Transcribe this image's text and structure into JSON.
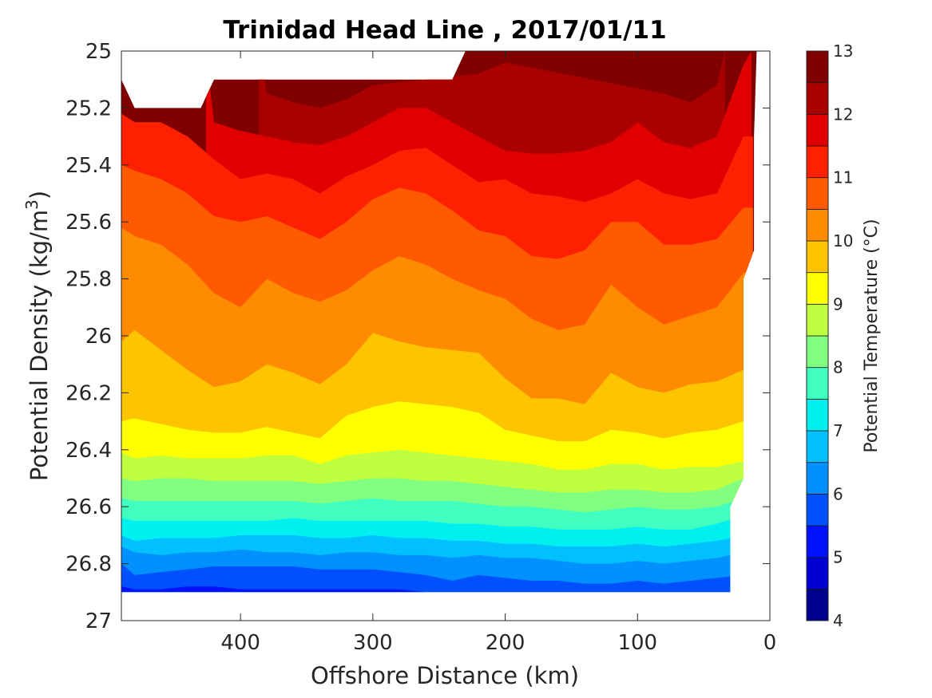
{
  "chart_data": {
    "type": "contour",
    "title": "Trinidad Head Line , 2017/01/11",
    "xlabel": "Offshore Distance (km)",
    "ylabel_prefix": "Potential Density (kg/m",
    "ylabel_sup": "3",
    "ylabel_suffix": ")",
    "xlim": [
      490,
      0
    ],
    "ylim": [
      25,
      27
    ],
    "x_reversed": true,
    "y_reversed": true,
    "x_ticks": [
      400,
      300,
      200,
      100,
      0
    ],
    "y_ticks": [
      25,
      25.2,
      25.4,
      25.6,
      25.8,
      26,
      26.2,
      26.4,
      26.6,
      26.8,
      27
    ],
    "y_tick_labels": [
      "25",
      "25.2",
      "25.4",
      "25.6",
      "25.8",
      "26",
      "26.2",
      "26.4",
      "26.6",
      "26.8",
      "27"
    ],
    "colorbar": {
      "label": "Potential Temperature (°C)",
      "range": [
        4,
        13
      ],
      "ticks": [
        4,
        5,
        6,
        7,
        8,
        9,
        10,
        11,
        12,
        13
      ],
      "levels": [
        4,
        4.5,
        5,
        5.5,
        6,
        6.5,
        7,
        7.5,
        8,
        8.5,
        9,
        9.5,
        10,
        10.5,
        11,
        11.5,
        12,
        12.5,
        13
      ],
      "colors": [
        "#00008f",
        "#0000d4",
        "#0011ff",
        "#0050ff",
        "#0090ff",
        "#00c0ff",
        "#00f0f0",
        "#40ffc0",
        "#80ff80",
        "#c0ff40",
        "#ffff00",
        "#ffc400",
        "#ff8c00",
        "#ff5a00",
        "#ff2000",
        "#e00000",
        "#aa0000",
        "#800000"
      ]
    },
    "x_stations": [
      490,
      480,
      460,
      440,
      420,
      400,
      380,
      360,
      340,
      320,
      300,
      280,
      260,
      240,
      220,
      200,
      180,
      160,
      140,
      120,
      100,
      80,
      60,
      40,
      20
    ],
    "isopycnals": [
      {
        "t": 12.5,
        "y": [
          null,
          null,
          null,
          null,
          null,
          null,
          null,
          null,
          null,
          null,
          null,
          null,
          null,
          null,
          null,
          null,
          null,
          null,
          null,
          null,
          null,
          null,
          null,
          25.05,
          null
        ]
      },
      {
        "t": 12,
        "y": [
          null,
          null,
          null,
          null,
          null,
          null,
          25.15,
          25.18,
          25.2,
          25.17,
          25.12,
          null,
          null,
          null,
          25.08,
          25.04,
          null,
          null,
          null,
          null,
          null,
          25.15,
          25.18,
          25.12,
          null
        ]
      },
      {
        "t": 11.5,
        "y": [
          null,
          null,
          null,
          null,
          25.25,
          25.28,
          25.3,
          25.32,
          25.33,
          25.3,
          25.25,
          25.2,
          25.2,
          25.25,
          25.3,
          25.35,
          25.36,
          25.36,
          25.35,
          25.32,
          25.25,
          25.32,
          25.34,
          25.3,
          25.05
        ]
      },
      {
        "t": 11,
        "y": [
          25.22,
          25.25,
          25.25,
          25.3,
          25.38,
          25.45,
          25.43,
          25.45,
          25.5,
          25.44,
          25.4,
          25.35,
          25.34,
          25.4,
          25.46,
          25.45,
          25.5,
          25.51,
          25.53,
          25.5,
          25.45,
          25.5,
          25.52,
          25.5,
          25.3
        ]
      },
      {
        "t": 10.5,
        "y": [
          25.4,
          25.42,
          25.45,
          25.5,
          25.58,
          25.6,
          25.58,
          25.62,
          25.66,
          25.6,
          25.52,
          25.48,
          25.5,
          25.56,
          25.63,
          25.65,
          25.72,
          25.73,
          25.7,
          25.6,
          25.6,
          25.68,
          25.68,
          25.66,
          25.55
        ]
      },
      {
        "t": 10,
        "y": [
          25.62,
          25.65,
          25.68,
          25.75,
          25.85,
          25.9,
          25.8,
          25.85,
          25.88,
          25.84,
          25.77,
          25.72,
          25.75,
          25.8,
          25.84,
          25.87,
          25.94,
          25.98,
          25.96,
          25.82,
          25.9,
          25.96,
          25.93,
          25.9,
          25.78
        ]
      },
      {
        "t": 9.5,
        "y": [
          26.02,
          25.98,
          26.05,
          26.12,
          26.18,
          26.16,
          26.1,
          26.13,
          26.17,
          26.1,
          25.99,
          26.02,
          26.04,
          26.05,
          26.06,
          26.15,
          26.22,
          26.22,
          26.24,
          26.13,
          26.18,
          26.2,
          26.17,
          26.16,
          26.12
        ]
      },
      {
        "t": 9,
        "y": [
          26.3,
          26.29,
          26.31,
          26.33,
          26.34,
          26.34,
          26.32,
          26.34,
          26.36,
          26.28,
          26.25,
          26.23,
          26.24,
          26.25,
          26.27,
          26.33,
          26.35,
          26.37,
          26.37,
          26.33,
          26.34,
          26.36,
          26.34,
          26.33,
          26.3
        ]
      },
      {
        "t": 8.5,
        "y": [
          26.41,
          26.43,
          26.42,
          26.43,
          26.43,
          26.43,
          26.42,
          26.42,
          26.45,
          26.42,
          26.41,
          26.4,
          26.41,
          26.42,
          26.43,
          26.44,
          26.45,
          26.47,
          26.47,
          26.45,
          26.45,
          26.47,
          26.46,
          26.46,
          26.44
        ]
      },
      {
        "t": 8,
        "y": [
          26.5,
          26.51,
          26.5,
          26.5,
          26.51,
          26.51,
          26.51,
          26.51,
          26.52,
          26.51,
          26.5,
          26.5,
          26.51,
          26.51,
          26.52,
          26.53,
          26.54,
          26.55,
          26.55,
          26.54,
          26.54,
          26.55,
          26.55,
          26.54,
          26.5
        ]
      },
      {
        "t": 7.5,
        "y": [
          26.57,
          26.58,
          26.58,
          26.58,
          26.58,
          26.58,
          26.58,
          26.58,
          26.59,
          26.58,
          26.57,
          26.58,
          26.58,
          26.58,
          26.59,
          26.6,
          26.6,
          26.61,
          26.62,
          26.61,
          26.6,
          26.61,
          26.61,
          26.6,
          26.57
        ]
      },
      {
        "t": 7,
        "y": [
          26.64,
          26.65,
          26.65,
          26.65,
          26.65,
          26.65,
          26.65,
          26.64,
          26.65,
          26.65,
          26.65,
          26.65,
          26.65,
          26.66,
          26.66,
          26.67,
          26.67,
          26.68,
          26.68,
          26.68,
          26.67,
          26.68,
          26.68,
          26.66,
          26.63
        ]
      },
      {
        "t": 6.5,
        "y": [
          26.7,
          26.72,
          26.71,
          26.71,
          26.71,
          26.7,
          26.7,
          26.7,
          26.71,
          26.71,
          26.7,
          26.71,
          26.71,
          26.72,
          26.72,
          26.73,
          26.73,
          26.74,
          26.74,
          26.74,
          26.73,
          26.74,
          26.73,
          26.72,
          26.7
        ]
      },
      {
        "t": 6,
        "y": [
          26.74,
          26.76,
          26.77,
          26.76,
          26.76,
          26.75,
          26.76,
          26.76,
          26.77,
          26.76,
          26.76,
          26.77,
          26.77,
          26.78,
          26.77,
          26.78,
          26.78,
          26.79,
          26.8,
          26.8,
          26.79,
          26.8,
          26.79,
          26.78,
          26.76
        ]
      },
      {
        "t": 5.5,
        "y": [
          26.8,
          26.84,
          26.83,
          26.82,
          26.81,
          26.81,
          26.81,
          26.81,
          26.82,
          26.82,
          26.82,
          26.83,
          26.84,
          26.86,
          26.84,
          26.85,
          26.86,
          26.86,
          26.87,
          26.87,
          26.86,
          26.87,
          26.86,
          26.85,
          26.84
        ]
      },
      {
        "t": 5,
        "y": [
          26.88,
          26.89,
          26.89,
          26.88,
          26.88,
          26.89,
          26.89,
          26.89,
          26.89,
          26.89,
          26.89,
          26.89,
          26.9,
          26.9,
          26.9,
          26.9,
          26.9,
          26.9,
          26.9,
          26.9,
          26.9,
          26.9,
          26.9,
          26.9,
          26.9
        ]
      }
    ],
    "data_boundary": {
      "top": [
        [
          490,
          25.1
        ],
        [
          480,
          25.2
        ],
        [
          450,
          25.2
        ],
        [
          430,
          25.2
        ],
        [
          420,
          25.1
        ],
        [
          360,
          25.1
        ],
        [
          300,
          25.1
        ],
        [
          240,
          25.1
        ],
        [
          230,
          25.0
        ],
        [
          10,
          25.0
        ]
      ],
      "right": [
        [
          10,
          25.0
        ],
        [
          12,
          25.3
        ],
        [
          12,
          25.7
        ],
        [
          20,
          25.8
        ],
        [
          20,
          26.5
        ],
        [
          30,
          26.6
        ],
        [
          30,
          26.9
        ]
      ],
      "bottom_y": 26.9
    }
  }
}
